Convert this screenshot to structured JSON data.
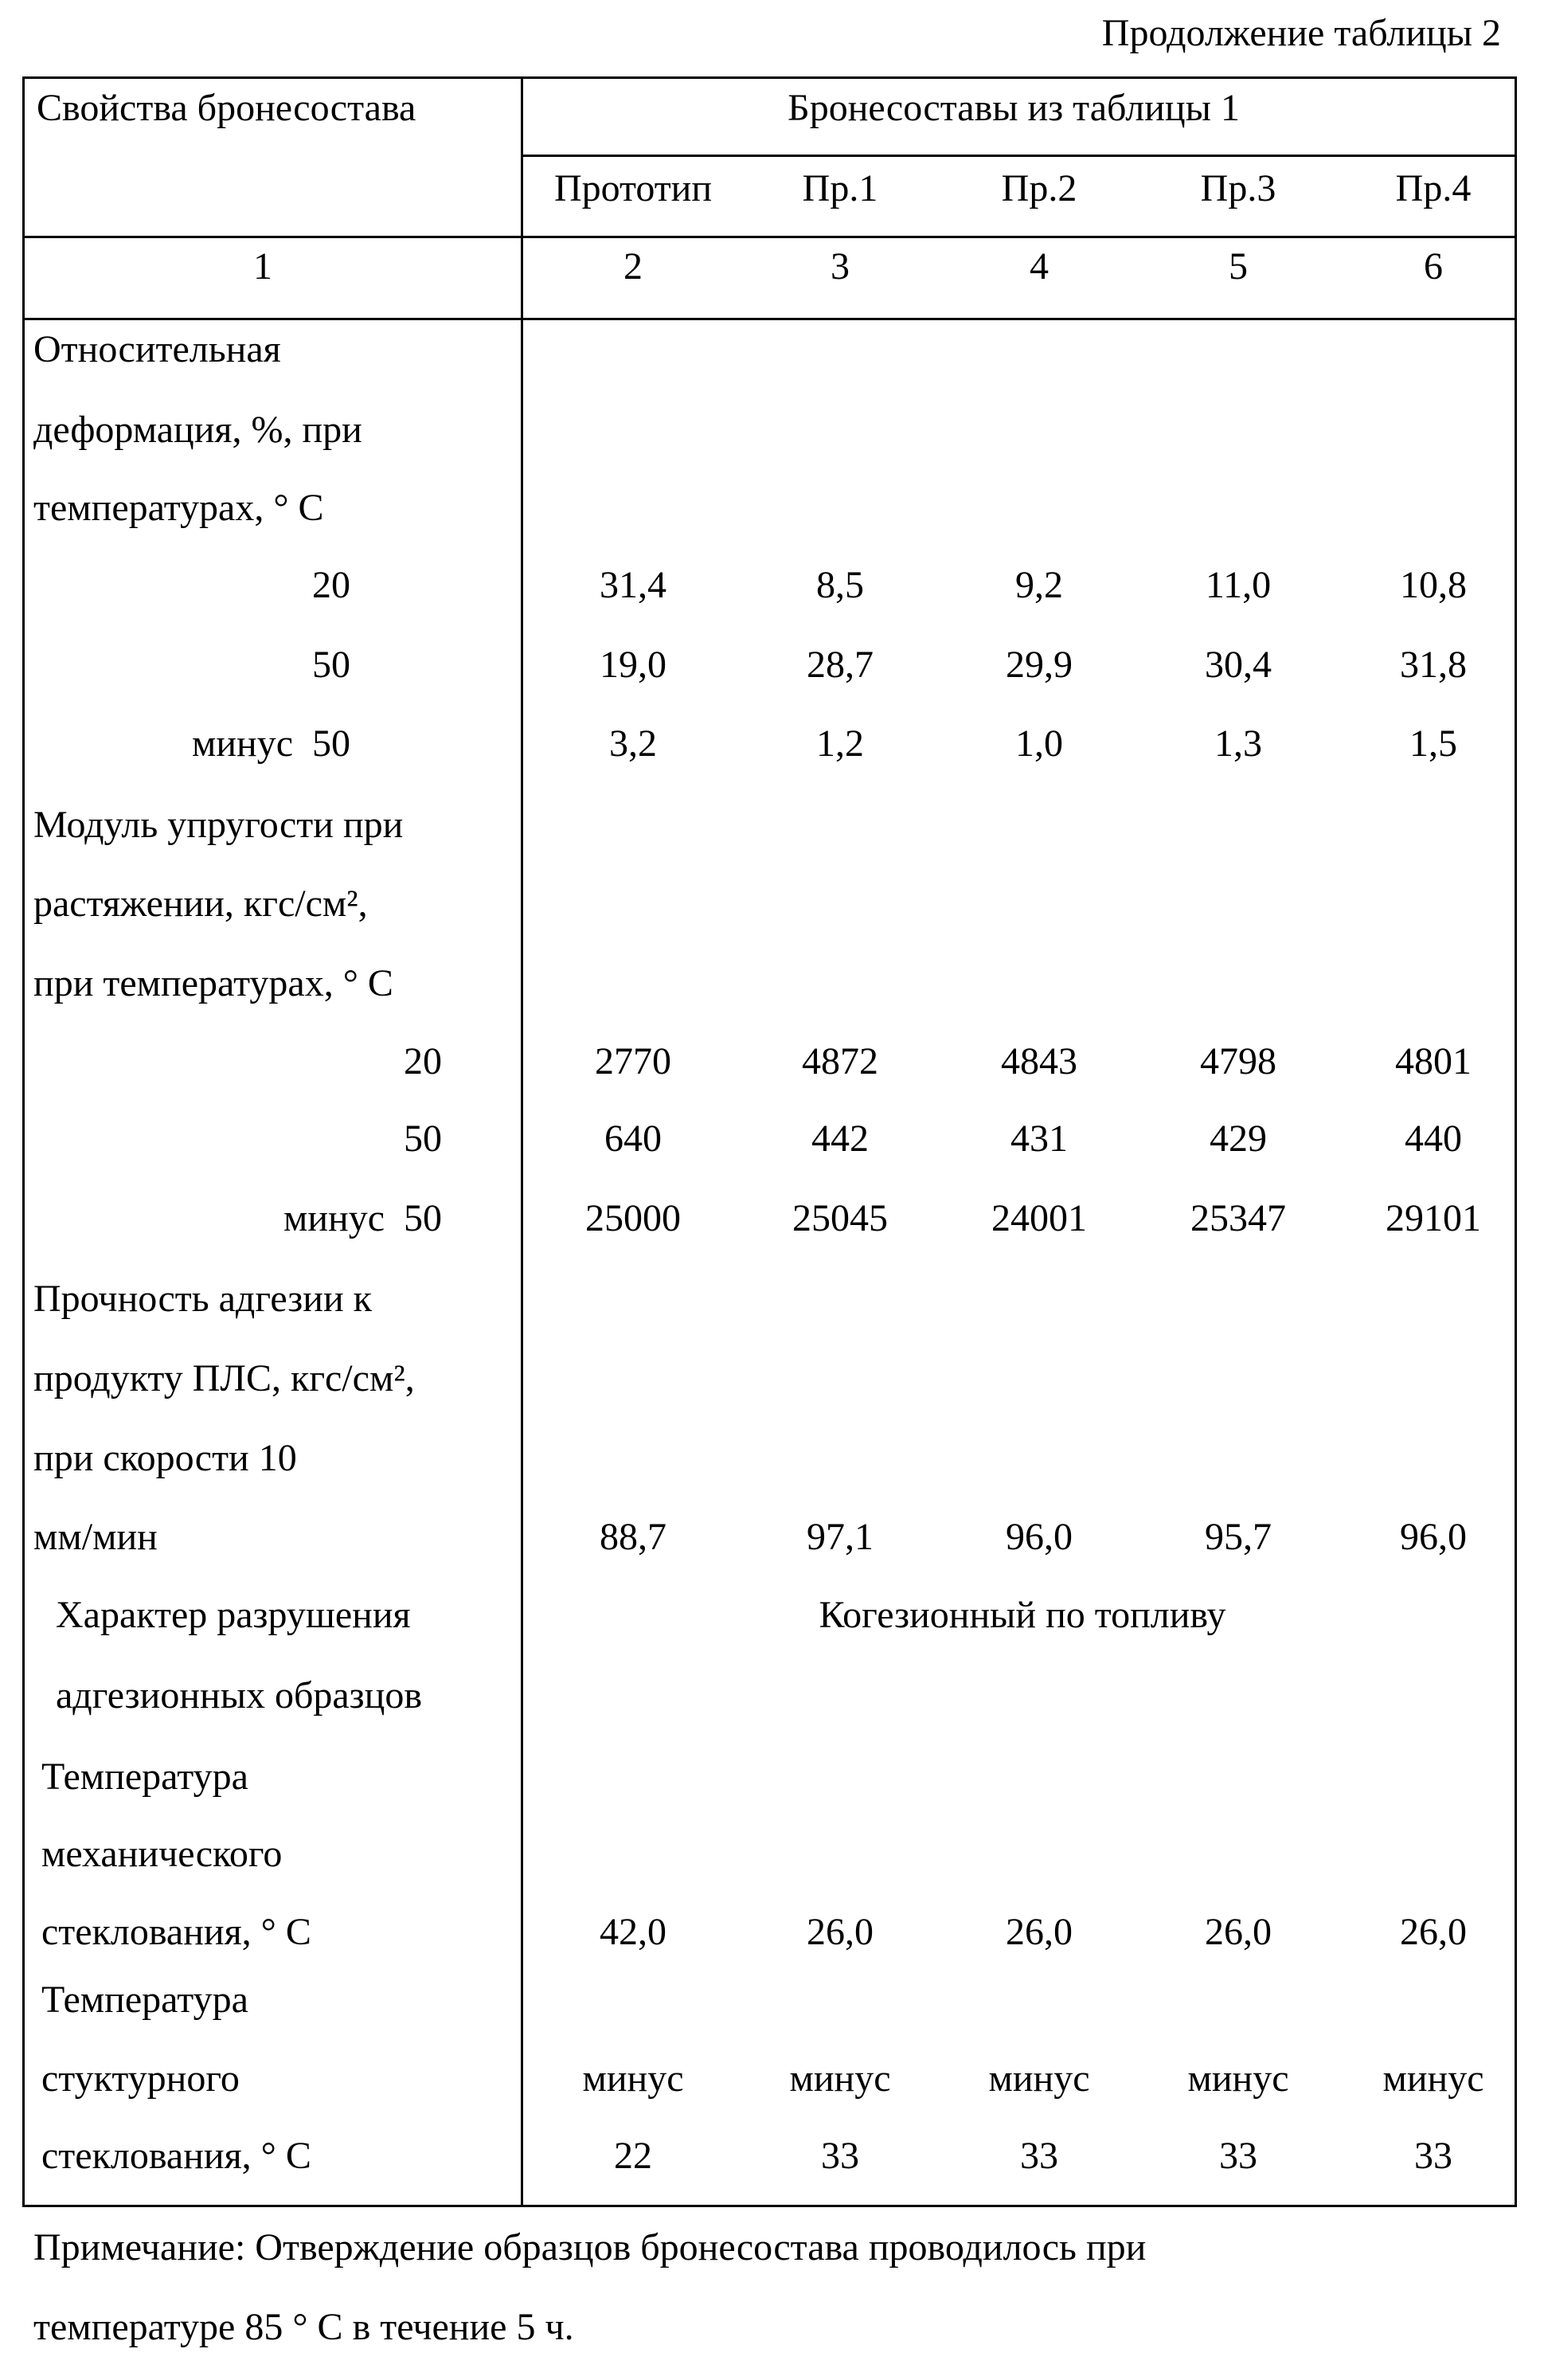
{
  "caption": "Продолжение таблицы 2",
  "table": {
    "header": {
      "property_col": "Свойства бронесостава",
      "group_title": "Бронесоставы из таблицы 1",
      "columns": [
        "Прототип",
        "Пр.1",
        "Пр.2",
        "Пр.3",
        "Пр.4"
      ],
      "numbers": [
        "1",
        "2",
        "3",
        "4",
        "5",
        "6"
      ]
    },
    "properties": [
      {
        "label": [
          "Относительная",
          "деформация, %, при",
          "температурах, ° С"
        ],
        "temperatures": [
          {
            "label": "20",
            "values": [
              "31,4",
              "8,5",
              "9,2",
              "11,0",
              "10,8"
            ]
          },
          {
            "label": "50",
            "values": [
              "19,0",
              "28,7",
              "29,9",
              "30,4",
              "31,8"
            ]
          },
          {
            "label": "минус  50",
            "values": [
              "3,2",
              "1,2",
              "1,0",
              "1,3",
              "1,5"
            ]
          }
        ]
      },
      {
        "label": [
          "Модуль упругости при",
          "растяжении, кгс/см²,",
          "при температурах, ° С"
        ],
        "temperatures": [
          {
            "label": "20",
            "values": [
              "2770",
              "4872",
              "4843",
              "4798",
              "4801"
            ]
          },
          {
            "label": "50",
            "values": [
              "640",
              "442",
              "431",
              "429",
              "440"
            ]
          },
          {
            "label": "минус  50",
            "values": [
              "25000",
              "25045",
              "24001",
              "25347",
              "29101"
            ]
          }
        ]
      },
      {
        "label": [
          "Прочность адгезии к",
          "продукту ПЛС, кгс/см²,",
          "при скорости 10",
          "мм/мин"
        ],
        "values": [
          "88,7",
          "97,1",
          "96,0",
          "95,7",
          "96,0"
        ]
      },
      {
        "label": [
          "Характер разрушения",
          "адгезионных образцов"
        ],
        "value_span": "Когезионный по топливу"
      },
      {
        "label": [
          "Температура",
          "механического",
          "стеклования, ° С"
        ],
        "values": [
          "42,0",
          "26,0",
          "26,0",
          "26,0",
          "26,0"
        ]
      },
      {
        "label": [
          "Температура",
          "стуктурного",
          "стеклования, ° С"
        ],
        "values": [
          [
            "минус",
            "22"
          ],
          [
            "минус",
            "33"
          ],
          [
            "минус",
            "33"
          ],
          [
            "минус",
            "33"
          ],
          [
            "минус",
            "33"
          ]
        ]
      }
    ]
  },
  "note": [
    "Примечание: Отверждение образцов бронесостава проводилось при",
    "температуре 85 ° С в течение 5 ч."
  ]
}
